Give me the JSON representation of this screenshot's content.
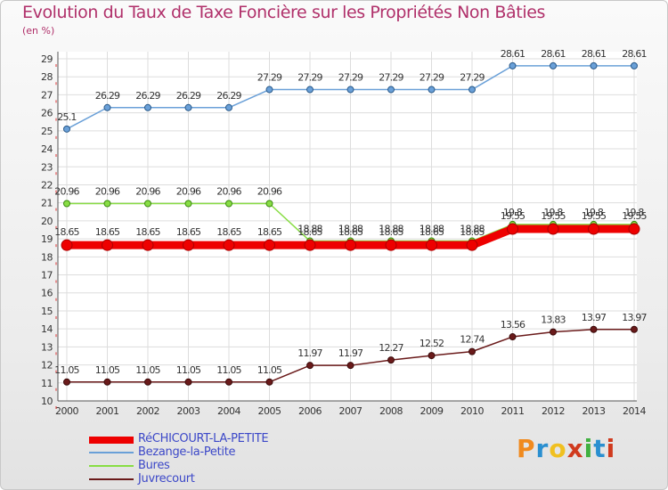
{
  "title": "Evolution du Taux de Taxe Foncière sur les Propriétés Non Bâties",
  "unit_label": "(en %)",
  "logo_text": "Proxiti",
  "chart_data": {
    "type": "line",
    "title": "Evolution du Taux de Taxe Foncière sur les Propriétés Non Bâties",
    "ylabel": "(en %)",
    "xlabel": "",
    "ylim": [
      10,
      29
    ],
    "yticks": [
      10,
      11,
      12,
      13,
      14,
      15,
      16,
      17,
      18,
      19,
      20,
      21,
      22,
      23,
      24,
      25,
      26,
      27,
      28,
      29
    ],
    "x": [
      "2000",
      "2001",
      "2002",
      "2003",
      "2004",
      "2005",
      "2006",
      "2007",
      "2008",
      "2009",
      "2010",
      "2011",
      "2012",
      "2013",
      "2014"
    ],
    "grid": true,
    "legend": "bottom-left",
    "series": [
      {
        "name": "Bezange-la-Petite",
        "color": "#6aa0d8",
        "values": [
          25.1,
          26.29,
          26.29,
          26.29,
          26.29,
          27.29,
          27.29,
          27.29,
          27.29,
          27.29,
          27.29,
          28.61,
          28.61,
          28.61,
          28.61
        ],
        "labels": [
          "25.1",
          "26.29",
          "26.29",
          "26.29",
          "26.29",
          "27.29",
          "27.29",
          "27.29",
          "27.29",
          "27.29",
          "27.29",
          "28.61",
          "28.61",
          "28.61",
          "28.61"
        ]
      },
      {
        "name": "Bures",
        "color": "#88dd44",
        "values": [
          20.96,
          20.96,
          20.96,
          20.96,
          20.96,
          20.96,
          18.88,
          18.88,
          18.88,
          18.88,
          18.88,
          19.8,
          19.8,
          19.8,
          19.8
        ],
        "labels": [
          "20.96",
          "20.96",
          "20.96",
          "20.96",
          "20.96",
          "20.96",
          "18.88",
          "18.88",
          "18.88",
          "18.88",
          "18.88",
          "19.8",
          "19.8",
          "19.8",
          "19.8"
        ]
      },
      {
        "name": "RéCHICOURT-LA-PETITE",
        "color": "#ee0000",
        "values": [
          18.65,
          18.65,
          18.65,
          18.65,
          18.65,
          18.65,
          18.65,
          18.65,
          18.65,
          18.65,
          18.65,
          19.55,
          19.55,
          19.55,
          19.55
        ],
        "labels": [
          "18.65",
          "18.65",
          "18.65",
          "18.65",
          "18.65",
          "18.65",
          "18.65",
          "18.65",
          "18.65",
          "18.65",
          "18.65",
          "19.55",
          "19.55",
          "19.55",
          "19.55"
        ]
      },
      {
        "name": "Juvrecourt",
        "color": "#6a1a1a",
        "values": [
          11.05,
          11.05,
          11.05,
          11.05,
          11.05,
          11.05,
          11.97,
          11.97,
          12.27,
          12.52,
          12.74,
          13.56,
          13.83,
          13.97,
          13.97
        ],
        "labels": [
          "11.05",
          "11.05",
          "11.05",
          "11.05",
          "11.05",
          "11.05",
          "11.97",
          "11.97",
          "12.27",
          "12.52",
          "12.74",
          "13.56",
          "13.83",
          "13.97",
          "13.97"
        ]
      }
    ],
    "legend_entries": [
      "RéCHICOURT-LA-PETITE",
      "Bezange-la-Petite",
      "Bures",
      "Juvrecourt"
    ]
  }
}
